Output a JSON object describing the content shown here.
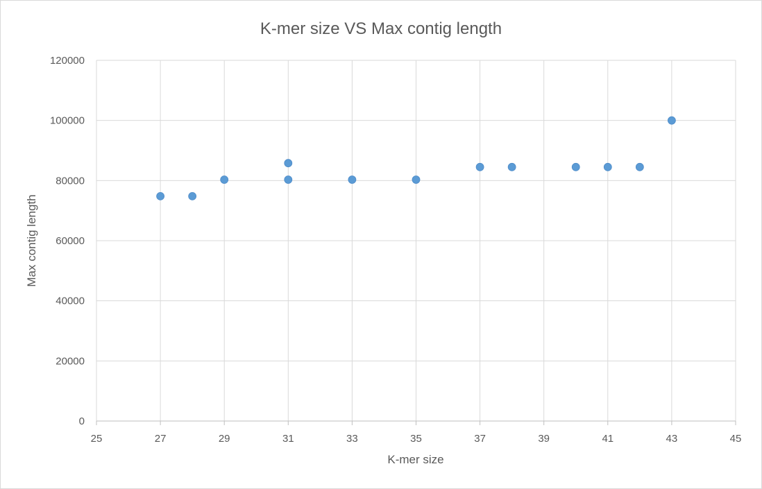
{
  "chart_data": {
    "type": "scatter",
    "title": "K-mer size VS Max contig length",
    "xlabel": "K-mer size",
    "ylabel": "Max contig length",
    "xlim": [
      25,
      45
    ],
    "ylim": [
      0,
      120000
    ],
    "x_ticks": [
      25,
      27,
      29,
      31,
      33,
      35,
      37,
      39,
      41,
      43,
      45
    ],
    "y_ticks": [
      0,
      20000,
      40000,
      60000,
      80000,
      100000,
      120000
    ],
    "grid": true,
    "legend": "none",
    "marker_color": "#5b9bd5",
    "series": [
      {
        "points": [
          {
            "x": 27,
            "y": 74800
          },
          {
            "x": 28,
            "y": 74800
          },
          {
            "x": 29,
            "y": 80300
          },
          {
            "x": 31,
            "y": 85800
          },
          {
            "x": 31,
            "y": 80300
          },
          {
            "x": 33,
            "y": 80300
          },
          {
            "x": 35,
            "y": 80300
          },
          {
            "x": 37,
            "y": 84500
          },
          {
            "x": 38,
            "y": 84500
          },
          {
            "x": 40,
            "y": 84500
          },
          {
            "x": 41,
            "y": 84500
          },
          {
            "x": 42,
            "y": 84500
          },
          {
            "x": 43,
            "y": 100000
          }
        ]
      }
    ]
  }
}
